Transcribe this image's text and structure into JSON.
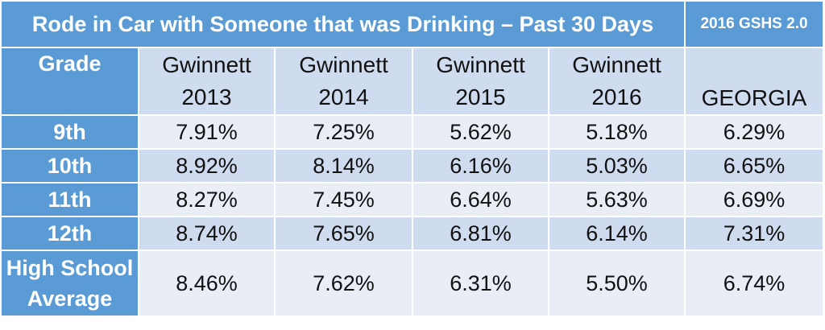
{
  "table": {
    "title": "Rode in Car with Someone that was Drinking – Past 30 Days",
    "subtitle": "2016 GSHS 2.0",
    "header": {
      "grade": "Grade",
      "columns": [
        {
          "line1": "Gwinnett",
          "line2": "2013"
        },
        {
          "line1": "Gwinnett",
          "line2": "2014"
        },
        {
          "line1": "Gwinnett",
          "line2": "2015"
        },
        {
          "line1": "Gwinnett",
          "line2": "2016"
        }
      ],
      "state": "GEORGIA"
    },
    "rows": [
      {
        "label": "9th",
        "values": [
          "7.91%",
          "7.25%",
          "5.62%",
          "5.18%",
          "6.29%"
        ]
      },
      {
        "label": "10th",
        "values": [
          "8.92%",
          "8.14%",
          "6.16%",
          "5.03%",
          "6.65%"
        ]
      },
      {
        "label": "11th",
        "values": [
          "8.27%",
          "7.45%",
          "6.64%",
          "5.63%",
          "6.69%"
        ]
      },
      {
        "label": "12th",
        "values": [
          "8.74%",
          "7.65%",
          "6.81%",
          "6.14%",
          "7.31%"
        ]
      },
      {
        "label_line1": "High School",
        "label_line2": "Average",
        "values": [
          "8.46%",
          "7.62%",
          "6.31%",
          "5.50%",
          "6.74%"
        ]
      }
    ],
    "colors": {
      "header_blue": "#5b9bd5",
      "band_dark": "#cfdbee",
      "band_light": "#e8edf6"
    }
  }
}
